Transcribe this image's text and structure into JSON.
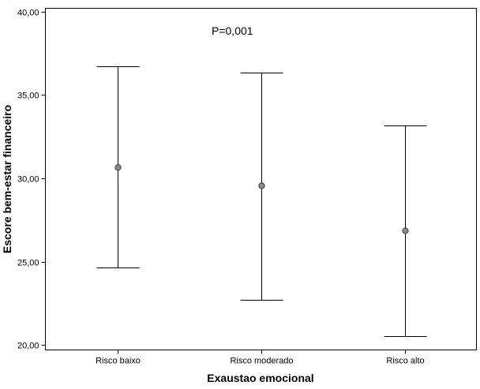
{
  "chart_data": {
    "type": "errorbar",
    "title": "",
    "xlabel": "Exaustao emocional",
    "ylabel": "Escore bem-estar financeiro",
    "annotation": "P=0,001",
    "categories": [
      "Risco baixo",
      "Risco moderado",
      "Risco alto"
    ],
    "means": [
      30.65,
      29.55,
      26.85
    ],
    "lower": [
      24.65,
      22.7,
      20.55
    ],
    "upper": [
      36.7,
      36.35,
      33.15
    ],
    "ylim": [
      19.7,
      40.2
    ],
    "yticks": [
      20,
      25,
      30,
      35,
      40
    ],
    "ytick_labels": [
      "20,00",
      "25,00",
      "30,00",
      "35,00",
      "40,00"
    ],
    "grid": false,
    "legend": "none",
    "colors": {
      "marker_fill": "#8c8c8c",
      "line": "#000000"
    }
  }
}
